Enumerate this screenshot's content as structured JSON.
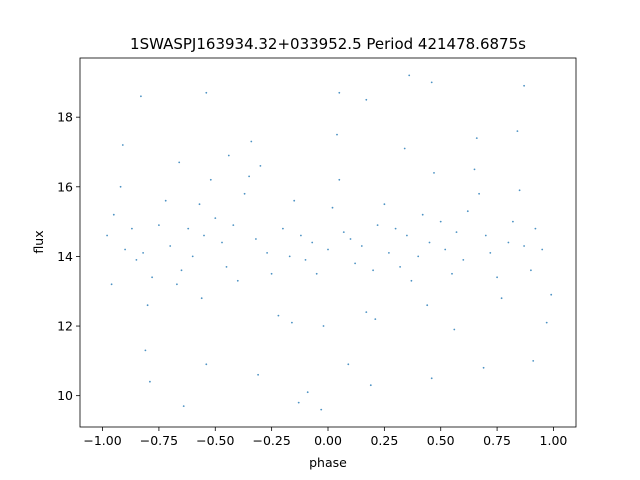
{
  "chart_data": {
    "type": "scatter",
    "title": "1SWASPJ163934.32+033952.5 Period 421478.6875s",
    "xlabel": "phase",
    "ylabel": "flux",
    "xlim": [
      -1.1,
      1.1
    ],
    "ylim": [
      9.1,
      19.7
    ],
    "xticks": [
      {
        "value": -1.0,
        "label": "−1.00"
      },
      {
        "value": -0.75,
        "label": "−0.75"
      },
      {
        "value": -0.5,
        "label": "−0.50"
      },
      {
        "value": -0.25,
        "label": "−0.25"
      },
      {
        "value": 0.0,
        "label": "0.00"
      },
      {
        "value": 0.25,
        "label": "0.25"
      },
      {
        "value": 0.5,
        "label": "0.50"
      },
      {
        "value": 0.75,
        "label": "0.75"
      },
      {
        "value": 1.0,
        "label": "1.00"
      }
    ],
    "yticks": [
      {
        "value": 10,
        "label": "10"
      },
      {
        "value": 12,
        "label": "12"
      },
      {
        "value": 14,
        "label": "14"
      },
      {
        "value": 16,
        "label": "16"
      },
      {
        "value": 18,
        "label": "18"
      }
    ],
    "grid": false,
    "marker_color": "#1f77b4",
    "series": [
      {
        "x": [
          -0.98,
          -0.95,
          -0.92,
          -0.9,
          -0.87,
          -0.85,
          -0.82,
          -0.8,
          -0.78,
          -0.75,
          -0.72,
          -0.7,
          -0.67,
          -0.65,
          -0.62,
          -0.6,
          -0.57,
          -0.55,
          -0.52,
          -0.5,
          -0.47,
          -0.45,
          -0.42,
          -0.4,
          -0.37,
          -0.35,
          -0.32,
          -0.3,
          -0.27,
          -0.25,
          -0.22,
          -0.2,
          -0.17,
          -0.15,
          -0.12,
          -0.1,
          -0.07,
          -0.05,
          -0.02,
          0.0,
          0.02,
          0.05,
          0.07,
          0.1,
          0.12,
          0.15,
          0.17,
          0.2,
          0.22,
          0.25,
          0.27,
          0.3,
          0.32,
          0.35,
          0.37,
          0.4,
          0.42,
          0.45,
          0.47,
          0.5,
          0.52,
          0.55,
          0.57,
          0.6,
          0.62,
          0.65,
          0.67,
          0.7,
          0.72,
          0.75,
          0.77,
          0.8,
          0.82,
          0.85,
          0.87,
          0.9,
          0.92,
          0.95,
          0.97,
          -0.96,
          -0.91,
          -0.81,
          -0.79,
          -0.66,
          -0.56,
          -0.54,
          -0.44,
          -0.34,
          -0.31,
          -0.16,
          -0.09,
          0.04,
          0.09,
          0.19,
          0.21,
          0.34,
          0.44,
          0.46,
          0.56,
          0.66,
          0.69,
          0.84,
          0.91,
          0.99,
          -0.83,
          0.17,
          0.05,
          -0.03,
          0.46,
          -0.54,
          0.87,
          -0.13,
          0.36,
          -0.64
        ],
        "y": [
          14.6,
          15.2,
          16.0,
          14.2,
          14.8,
          13.9,
          14.1,
          12.6,
          13.4,
          14.9,
          15.6,
          14.3,
          13.2,
          13.6,
          14.8,
          14.0,
          15.5,
          14.6,
          16.2,
          15.1,
          14.4,
          13.7,
          14.9,
          13.3,
          15.8,
          16.3,
          14.5,
          16.6,
          14.1,
          13.5,
          12.3,
          14.8,
          14.0,
          15.6,
          14.6,
          13.9,
          14.4,
          13.5,
          12.0,
          14.2,
          15.4,
          16.2,
          14.7,
          14.5,
          13.8,
          14.3,
          12.4,
          13.6,
          14.9,
          15.5,
          14.1,
          14.8,
          13.7,
          14.6,
          13.3,
          14.0,
          15.2,
          14.4,
          16.4,
          15.0,
          14.2,
          13.5,
          14.7,
          13.9,
          15.3,
          16.5,
          15.8,
          14.6,
          14.1,
          13.4,
          12.8,
          14.4,
          15.0,
          15.9,
          14.3,
          13.6,
          14.8,
          14.2,
          12.1,
          13.2,
          17.2,
          11.3,
          10.4,
          16.7,
          12.8,
          10.9,
          16.9,
          17.3,
          10.6,
          12.1,
          10.1,
          17.5,
          10.9,
          10.3,
          12.2,
          17.1,
          12.6,
          10.5,
          11.9,
          17.4,
          10.8,
          17.6,
          11.0,
          12.9,
          18.6,
          18.5,
          18.7,
          9.6,
          19.0,
          18.7,
          18.9,
          9.8,
          19.2,
          9.7
        ]
      }
    ]
  }
}
